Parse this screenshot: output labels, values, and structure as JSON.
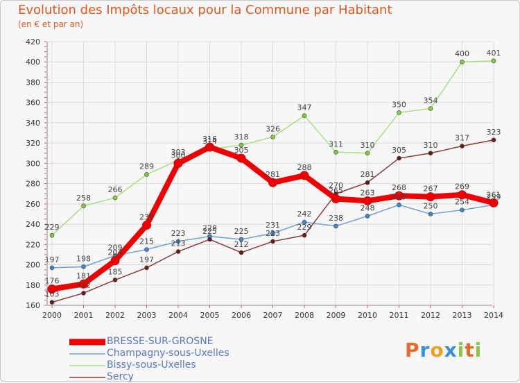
{
  "header": {
    "title": "Evolution des Impôts locaux pour la Commune par Habitant",
    "subtitle": "(en € et par an)"
  },
  "brand": {
    "text": "Proxiti",
    "letters": [
      "P",
      "r",
      "o",
      "x",
      "i",
      "t",
      "i"
    ],
    "colors": [
      "#e8682a",
      "#3a8fd6",
      "#f0a020",
      "#3a8fd6",
      "#8cc63f",
      "#e8682a",
      "#8cc63f"
    ]
  },
  "chart_data": {
    "type": "line",
    "title": "Evolution des Impôts locaux pour la Commune par Habitant",
    "subtitle": "(en € et par an)",
    "xlabel": "",
    "ylabel": "",
    "ylim": [
      160,
      420
    ],
    "yticks": [
      160,
      180,
      200,
      220,
      240,
      260,
      280,
      300,
      320,
      340,
      360,
      380,
      400,
      420
    ],
    "grid": true,
    "x": [
      2000,
      2001,
      2002,
      2003,
      2004,
      2005,
      2006,
      2007,
      2008,
      2009,
      2010,
      2011,
      2012,
      2013,
      2014
    ],
    "series": [
      {
        "name": "BRESSE-SUR-GROSNE",
        "color": "#ee0000",
        "emphasis": true,
        "values": [
          176,
          181,
          204,
          239,
          300,
          316,
          305,
          281,
          288,
          265,
          263,
          268,
          267,
          269,
          261
        ]
      },
      {
        "name": "Champagny-sous-Uxelles",
        "color": "#6fa3d6",
        "marker": "#3e86d0",
        "values": [
          197,
          198,
          209,
          215,
          223,
          228,
          225,
          231,
          242,
          238,
          248,
          259,
          250,
          254,
          259
        ]
      },
      {
        "name": "Bissy-sous-Uxelles",
        "color": "#a8df80",
        "marker": "#7dcc3a",
        "values": [
          229,
          258,
          266,
          289,
          303,
          314,
          318,
          326,
          347,
          311,
          310,
          350,
          354,
          400,
          401
        ]
      },
      {
        "name": "Sercy",
        "color": "#8a3a3a",
        "marker": "#6a1a1a",
        "values": [
          163,
          172,
          185,
          197,
          213,
          225,
          212,
          223,
          229,
          270,
          281,
          305,
          310,
          317,
          323
        ]
      }
    ]
  }
}
